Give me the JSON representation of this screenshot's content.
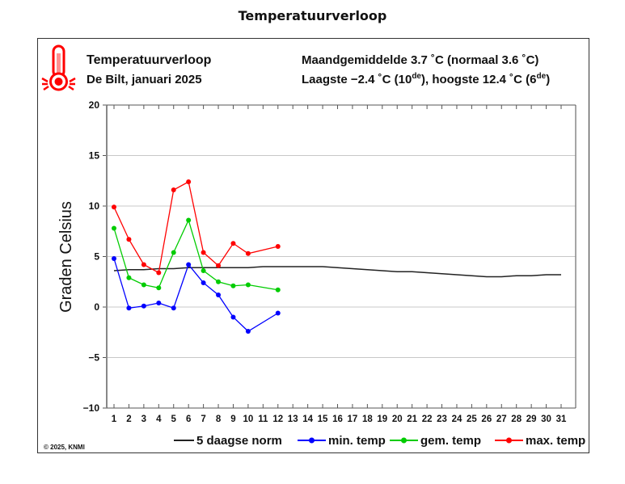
{
  "page": {
    "title": "Temperatuurverloop"
  },
  "header": {
    "title": "Temperatuurverloop",
    "subtitle": "De Bilt, januari 2025",
    "stats_line1": "Maandgemiddelde 3.7 ˚C (normaal 3.6 ˚C)",
    "stats_line2_a": "Laagste −2.4 ˚C (10",
    "stats_line2_sup1": "de",
    "stats_line2_b": "), hoogste 12.4 ˚C (6",
    "stats_line2_sup2": "de",
    "stats_line2_c": ")",
    "icon": "thermometer-hot-icon"
  },
  "footer": {
    "copyright": "© 2025, KNMI"
  },
  "colors": {
    "min": "#0000ff",
    "gem": "#00cc00",
    "max": "#ff0000",
    "norm": "#222222",
    "grid": "#c8c8c8",
    "icon": "#ff0000"
  },
  "chart_data": {
    "type": "line",
    "title": "Temperatuurverloop",
    "xlabel": "",
    "ylabel": "Graden Celsius",
    "x": [
      1,
      2,
      3,
      4,
      5,
      6,
      7,
      8,
      9,
      10,
      11,
      12,
      13,
      14,
      15,
      16,
      17,
      18,
      19,
      20,
      21,
      22,
      23,
      24,
      25,
      26,
      27,
      28,
      29,
      30,
      31
    ],
    "xticks": [
      "1",
      "2",
      "3",
      "4",
      "5",
      "6",
      "7",
      "8",
      "9",
      "10",
      "11",
      "12",
      "13",
      "14",
      "15",
      "16",
      "17",
      "18",
      "19",
      "20",
      "21",
      "22",
      "23",
      "24",
      "25",
      "26",
      "27",
      "28",
      "29",
      "30",
      "31"
    ],
    "ylim": [
      -10,
      20
    ],
    "yticks": [
      20,
      15,
      10,
      5,
      0,
      -5,
      -10
    ],
    "ytick_labels": [
      "20",
      "15",
      "10",
      "5",
      "0",
      "−5",
      "−10"
    ],
    "grid": true,
    "legend_position": "bottom",
    "series": [
      {
        "name": "5 daagse norm",
        "key": "norm",
        "marker": false,
        "values": [
          3.6,
          3.7,
          3.7,
          3.8,
          3.8,
          3.9,
          3.9,
          3.9,
          3.9,
          3.9,
          4.0,
          4.0,
          4.0,
          4.0,
          4.0,
          3.9,
          3.8,
          3.7,
          3.6,
          3.5,
          3.5,
          3.4,
          3.3,
          3.2,
          3.1,
          3.0,
          3.0,
          3.1,
          3.1,
          3.2,
          3.2
        ]
      },
      {
        "name": "min. temp",
        "key": "min",
        "marker": true,
        "values": [
          4.8,
          -0.1,
          0.1,
          0.4,
          -0.1,
          4.2,
          2.4,
          1.2,
          -1.0,
          -2.4,
          null,
          -0.6,
          null,
          null,
          null,
          null,
          null,
          null,
          null,
          null,
          null,
          null,
          null,
          null,
          null,
          null,
          null,
          null,
          null,
          null,
          null
        ]
      },
      {
        "name": "gem. temp",
        "key": "gem",
        "marker": true,
        "values": [
          7.8,
          2.9,
          2.2,
          1.9,
          5.4,
          8.6,
          3.6,
          2.5,
          2.1,
          2.2,
          null,
          1.7,
          null,
          null,
          null,
          null,
          null,
          null,
          null,
          null,
          null,
          null,
          null,
          null,
          null,
          null,
          null,
          null,
          null,
          null,
          null
        ]
      },
      {
        "name": "max. temp",
        "key": "max",
        "marker": true,
        "values": [
          9.9,
          6.7,
          4.2,
          3.4,
          11.6,
          12.4,
          5.4,
          4.1,
          6.3,
          5.3,
          null,
          6.0,
          null,
          null,
          null,
          null,
          null,
          null,
          null,
          null,
          null,
          null,
          null,
          null,
          null,
          null,
          null,
          null,
          null,
          null,
          null
        ]
      }
    ]
  }
}
